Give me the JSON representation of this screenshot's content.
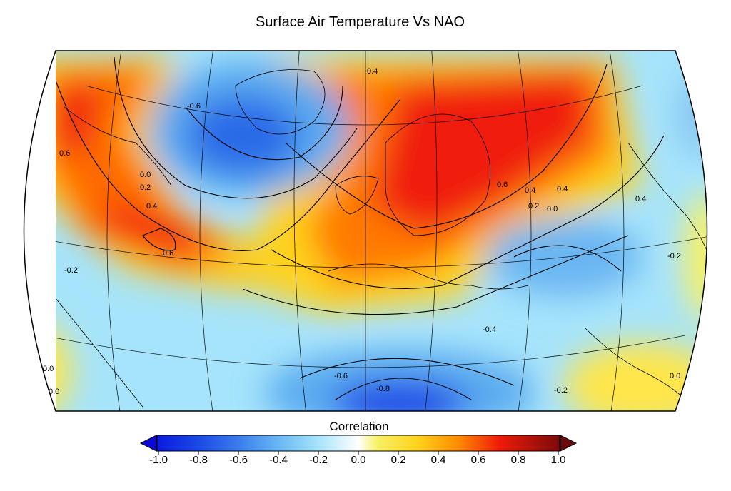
{
  "title": "Surface Air Temperature Vs NAO",
  "colorbar": {
    "label": "Correlation",
    "ticks": [
      "-1.0",
      "-0.8",
      "-0.6",
      "-0.4",
      "-0.2",
      "0.0",
      "0.2",
      "0.4",
      "0.6",
      "0.8",
      "1.0"
    ],
    "range": [
      -1.0,
      1.0
    ],
    "extend": "both"
  },
  "contour_labels": [
    "0.4",
    "0.6",
    "0.6",
    "-0.6",
    "0.0",
    "0.2",
    "0.4",
    "-0.2",
    "0.0",
    "0.0",
    "0.4",
    "0.6",
    "0.4",
    "0.2",
    "0.0",
    "0.4",
    "-0.2",
    "-0.4",
    "-0.6",
    "-0.8",
    "-0.2",
    "0.0"
  ],
  "colors": {
    "strong_negative": "#1a47e6",
    "negative": "#5aaaf0",
    "weak_negative": "#a6e4fb",
    "neutral": "#f7f060",
    "positive": "#ffab00",
    "strong_positive": "#f01a0a"
  }
}
